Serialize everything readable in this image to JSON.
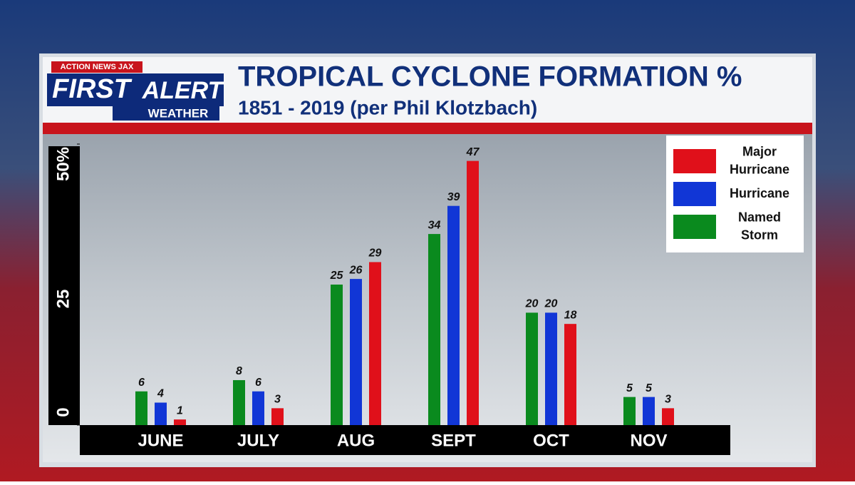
{
  "logo": {
    "station": "ACTION NEWS JAX",
    "first": "FIRST",
    "alert": "ALERT",
    "weather": "WEATHER"
  },
  "chart_data": {
    "type": "bar",
    "title": "TROPICAL CYCLONE FORMATION %",
    "subtitle": "1851 - 2019 (per Phil Klotzbach)",
    "categories": [
      "JUNE",
      "JULY",
      "AUG",
      "SEPT",
      "OCT",
      "NOV"
    ],
    "series": [
      {
        "name": "Named Storm",
        "color": "#0a8a1e",
        "values": [
          6,
          8,
          25,
          34,
          20,
          5
        ]
      },
      {
        "name": "Hurricane",
        "color": "#1136d6",
        "values": [
          4,
          6,
          26,
          39,
          20,
          5
        ]
      },
      {
        "name": "Major Hurricane",
        "color": "#e0101a",
        "values": [
          1,
          3,
          29,
          47,
          18,
          3
        ]
      }
    ],
    "ylim": [
      0,
      50
    ],
    "yticks": [
      0,
      25,
      {
        "value": 50,
        "label": "50%"
      }
    ],
    "legend": "top-right"
  }
}
